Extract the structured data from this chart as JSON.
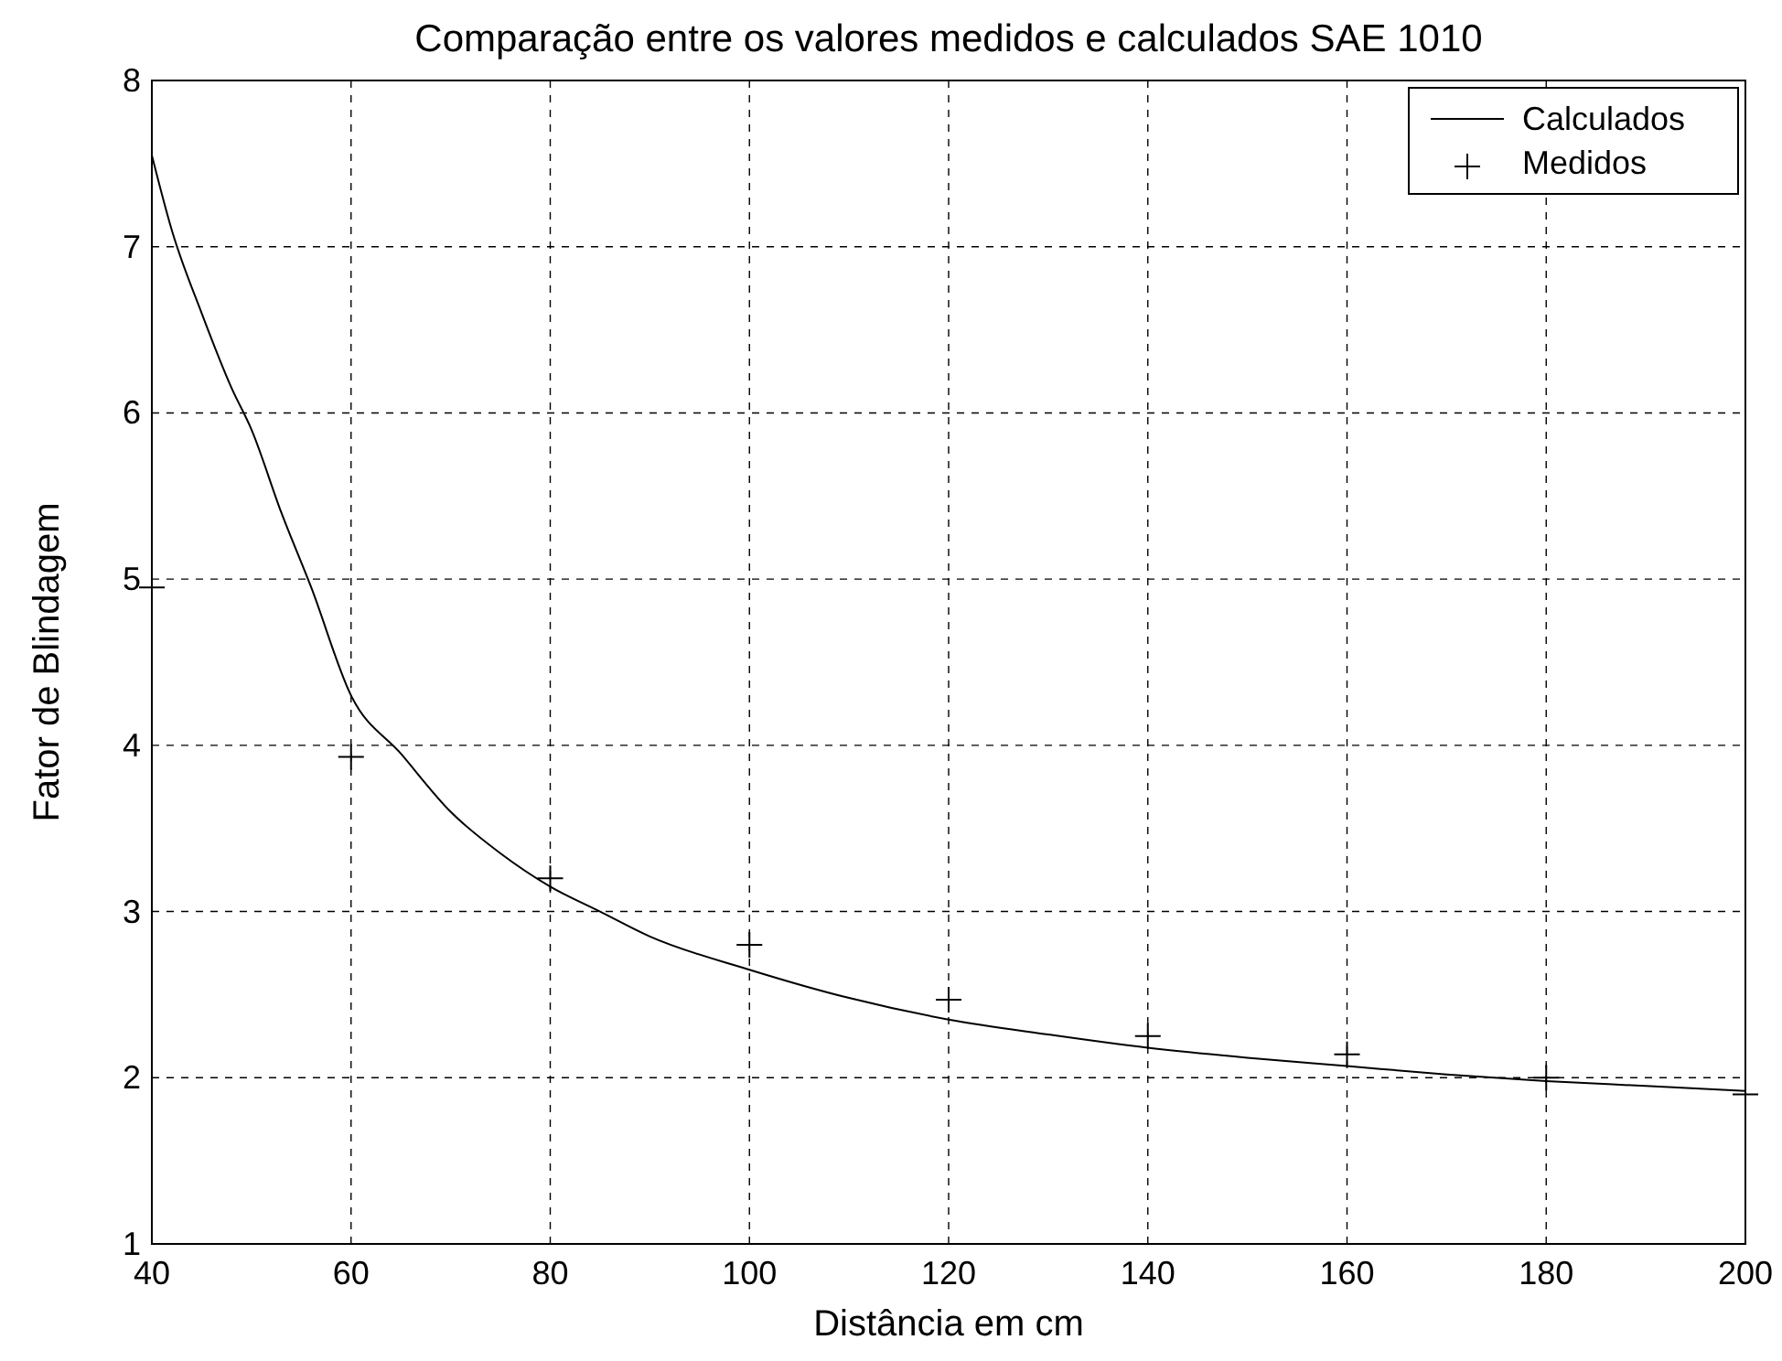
{
  "chart_data": {
    "type": "line",
    "title": "Comparação entre os valores medidos e calculados SAE 1010",
    "xlabel": "Distância em cm",
    "ylabel": "Fator de Blindagem",
    "xlim": [
      40,
      200
    ],
    "ylim": [
      1,
      8
    ],
    "xticks": [
      40,
      60,
      80,
      100,
      120,
      140,
      160,
      180,
      200
    ],
    "yticks": [
      1,
      2,
      3,
      4,
      5,
      6,
      7,
      8
    ],
    "grid": true,
    "legend": "top right",
    "series": [
      {
        "name": "Calculados",
        "color": "#000000",
        "marker": "none",
        "line_style": "solid",
        "x": [
          40,
          42,
          45,
          48,
          50,
          53,
          56,
          60,
          65,
          70,
          75,
          80,
          85,
          90,
          100,
          110,
          120,
          130,
          140,
          150,
          160,
          170,
          180,
          190,
          200
        ],
        "values": [
          7.55,
          7.1,
          6.6,
          6.15,
          5.9,
          5.4,
          4.95,
          4.3,
          3.95,
          3.6,
          3.35,
          3.15,
          3.0,
          2.85,
          2.65,
          2.48,
          2.35,
          2.26,
          2.18,
          2.12,
          2.07,
          2.02,
          1.98,
          1.95,
          1.92
        ]
      },
      {
        "name": "Medidos",
        "type": "scatter",
        "color": "#000000",
        "marker": "cross",
        "x": [
          40,
          60,
          80,
          100,
          120,
          140,
          160,
          180,
          200
        ],
        "values": [
          4.95,
          3.93,
          3.2,
          2.8,
          2.47,
          2.25,
          2.14,
          2.0,
          1.9
        ]
      }
    ]
  }
}
